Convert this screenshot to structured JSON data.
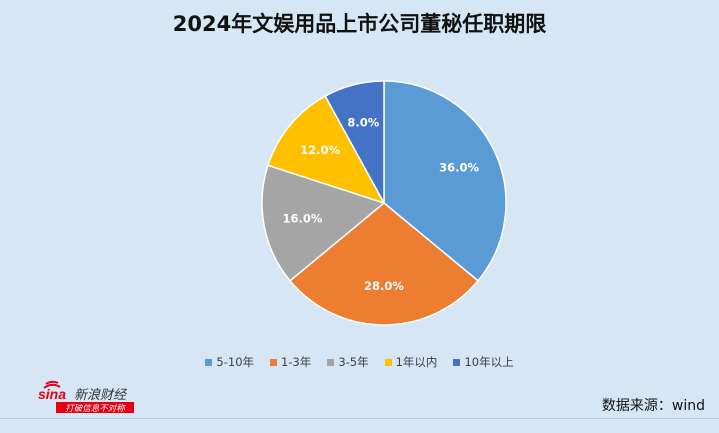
{
  "chart_data": {
    "type": "pie",
    "title": "2024年文娱用品上市公司董秘任职期限",
    "categories": [
      "5-10年",
      "1-3年",
      "3-5年",
      "1年以内",
      "10年以上"
    ],
    "values": [
      36.0,
      28.0,
      16.0,
      12.0,
      8.0
    ],
    "labels": [
      "36.0%",
      "28.0%",
      "16.0%",
      "12.0%",
      "8.0%"
    ],
    "colors": [
      "#5b9bd5",
      "#ed7d31",
      "#a5a5a5",
      "#ffc000",
      "#4472c4"
    ],
    "legend_position": "bottom"
  },
  "footer": {
    "source": "数据来源：wind",
    "logo_text": "新浪财经",
    "logo_tagline": "打破信息不对称"
  }
}
